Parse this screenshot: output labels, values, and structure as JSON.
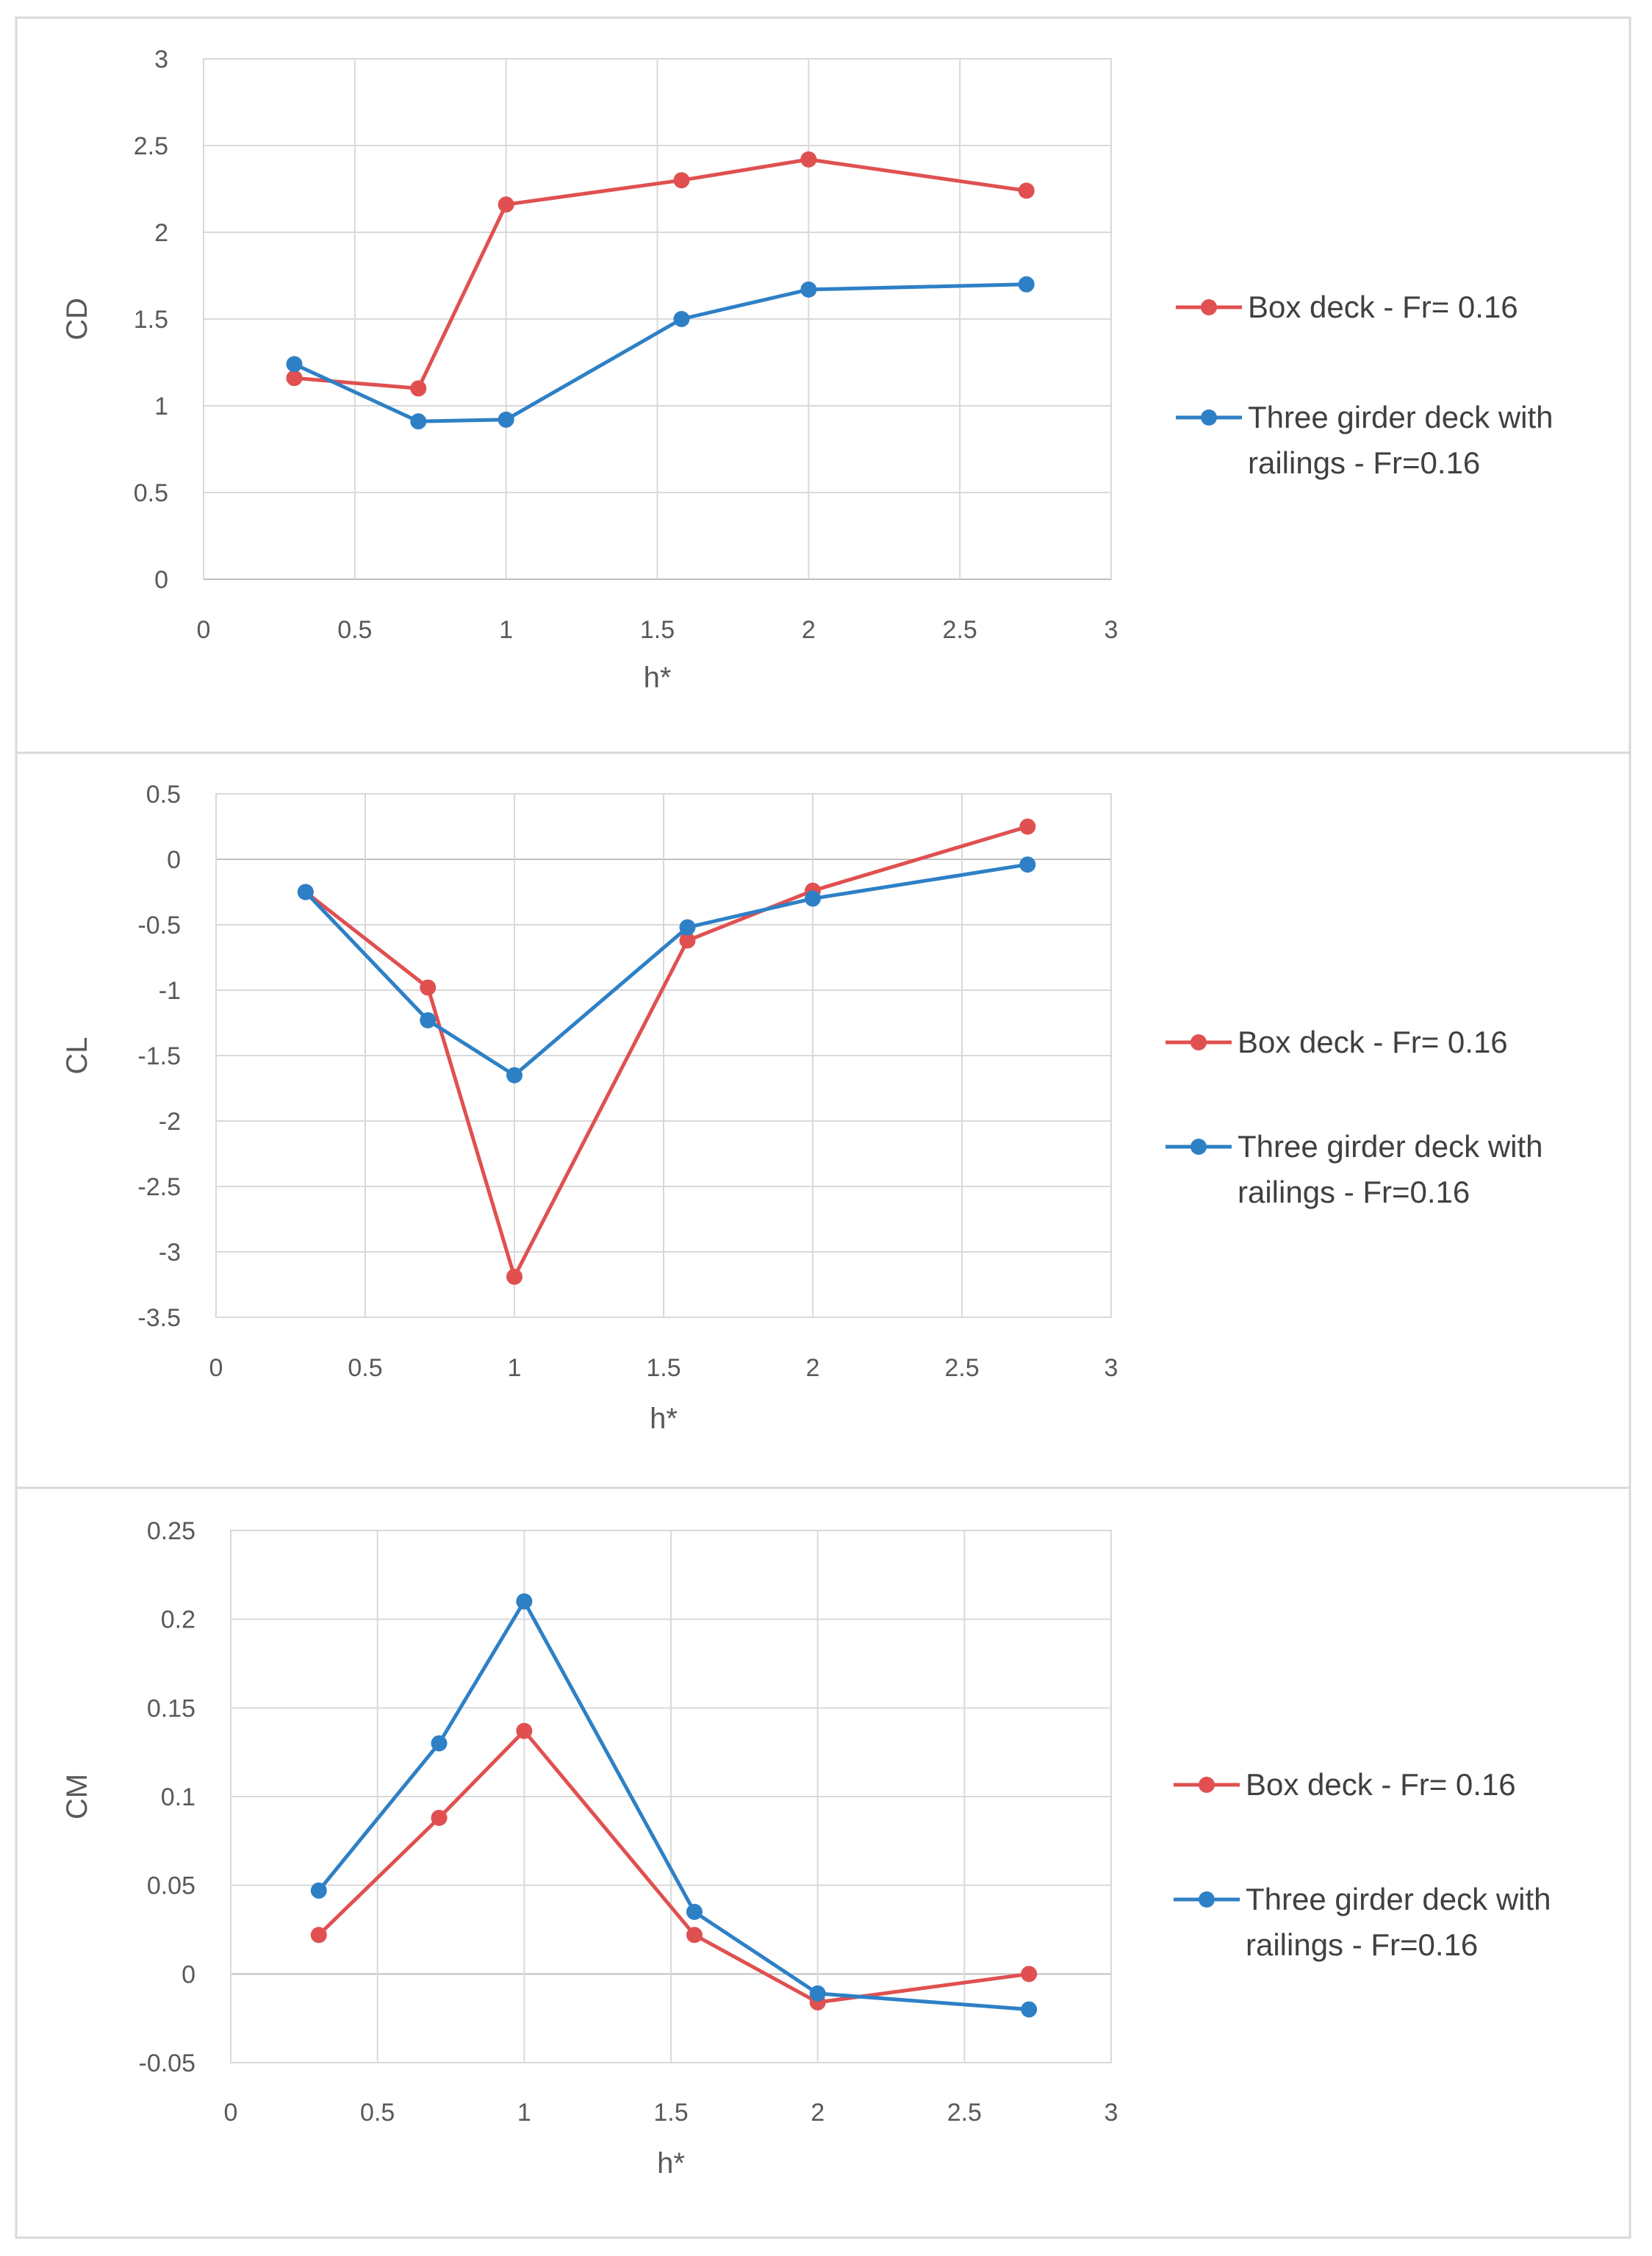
{
  "chart_data": [
    {
      "type": "line",
      "xlabel": "h*",
      "ylabel": "CD",
      "xlim": [
        0,
        3
      ],
      "ylim": [
        0,
        3
      ],
      "xticks": [
        "0",
        "0.5",
        "1",
        "1.5",
        "2",
        "2.5",
        "3"
      ],
      "yticks": [
        "0",
        "0.5",
        "1",
        "1.5",
        "2",
        "2.5",
        "3"
      ],
      "grid": true,
      "legend_position": "right",
      "series": [
        {
          "name": "Box deck - Fr= 0.16",
          "legend_lines": [
            "Box deck - Fr= 0.16"
          ],
          "color": "#e05050",
          "points": [
            [
              0.3,
              1.16
            ],
            [
              0.71,
              1.1
            ],
            [
              1.0,
              2.16
            ],
            [
              1.58,
              2.3
            ],
            [
              2.0,
              2.42
            ],
            [
              2.72,
              2.24
            ]
          ]
        },
        {
          "name": "Three girder deck with railings - Fr=0.16",
          "legend_lines": [
            "Three girder deck with",
            "railings  - Fr=0.16"
          ],
          "color": "#2e80c6",
          "points": [
            [
              0.3,
              1.24
            ],
            [
              0.71,
              0.91
            ],
            [
              1.0,
              0.92
            ],
            [
              1.58,
              1.5
            ],
            [
              2.0,
              1.67
            ],
            [
              2.72,
              1.7
            ]
          ]
        }
      ]
    },
    {
      "type": "line",
      "xlabel": "h*",
      "ylabel": "CL",
      "xlim": [
        0,
        3
      ],
      "ylim": [
        -3.5,
        0.5
      ],
      "xticks": [
        "0",
        "0.5",
        "1",
        "1.5",
        "2",
        "2.5",
        "3"
      ],
      "yticks": [
        "-3.5",
        "-3",
        "-2.5",
        "-2",
        "-1.5",
        "-1",
        "-0.5",
        "0",
        "0.5"
      ],
      "grid": true,
      "legend_position": "right",
      "series": [
        {
          "name": "Box deck - Fr= 0.16",
          "legend_lines": [
            "Box deck - Fr= 0.16"
          ],
          "color": "#e05050",
          "points": [
            [
              0.3,
              -0.25
            ],
            [
              0.71,
              -0.98
            ],
            [
              1.0,
              -3.19
            ],
            [
              1.58,
              -0.62
            ],
            [
              2.0,
              -0.24
            ],
            [
              2.72,
              0.25
            ]
          ]
        },
        {
          "name": "Three girder deck with railings - Fr=0.16",
          "legend_lines": [
            "Three girder deck with",
            "railings  - Fr=0.16"
          ],
          "color": "#2e80c6",
          "points": [
            [
              0.3,
              -0.25
            ],
            [
              0.71,
              -1.23
            ],
            [
              1.0,
              -1.65
            ],
            [
              1.58,
              -0.52
            ],
            [
              2.0,
              -0.3
            ],
            [
              2.72,
              -0.04
            ]
          ]
        }
      ]
    },
    {
      "type": "line",
      "xlabel": "h*",
      "ylabel": "CM",
      "xlim": [
        0,
        3
      ],
      "ylim": [
        -0.05,
        0.25
      ],
      "xticks": [
        "0",
        "0.5",
        "1",
        "1.5",
        "2",
        "2.5",
        "3"
      ],
      "yticks": [
        "-0.05",
        "0",
        "0.05",
        "0.1",
        "0.15",
        "0.2",
        "0.25"
      ],
      "grid": true,
      "legend_position": "right",
      "series": [
        {
          "name": "Box deck - Fr= 0.16",
          "legend_lines": [
            "Box deck - Fr= 0.16"
          ],
          "color": "#e05050",
          "points": [
            [
              0.3,
              0.022
            ],
            [
              0.71,
              0.088
            ],
            [
              1.0,
              0.137
            ],
            [
              1.58,
              0.022
            ],
            [
              2.0,
              -0.016
            ],
            [
              2.72,
              0.0
            ]
          ]
        },
        {
          "name": "Three girder deck with railings - Fr=0.16",
          "legend_lines": [
            "Three girder deck with",
            "railings  - Fr=0.16"
          ],
          "color": "#2e80c6",
          "points": [
            [
              0.3,
              0.047
            ],
            [
              0.71,
              0.13
            ],
            [
              1.0,
              0.21
            ],
            [
              1.58,
              0.035
            ],
            [
              2.0,
              -0.011
            ],
            [
              2.72,
              -0.02
            ]
          ]
        }
      ]
    }
  ]
}
